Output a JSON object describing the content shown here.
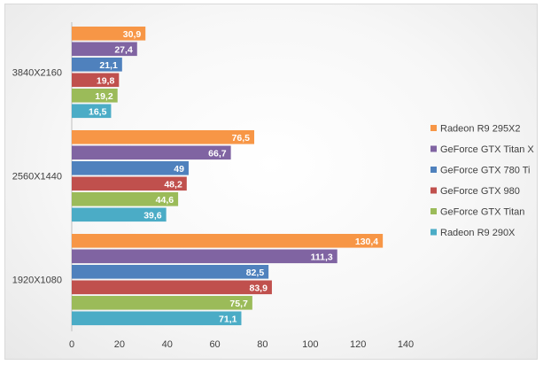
{
  "chart_data": {
    "type": "bar",
    "orientation": "horizontal",
    "categories": [
      "3840X2160",
      "2560X1440",
      "1920X1080"
    ],
    "series": [
      {
        "name": "Radeon R9 295X2",
        "color": "#F79646",
        "values": [
          30.9,
          76.5,
          130.4
        ],
        "labels": [
          "30,9",
          "76,5",
          "130,4"
        ]
      },
      {
        "name": "GeForce GTX Titan X",
        "color": "#8064A2",
        "values": [
          27.4,
          66.7,
          111.3
        ],
        "labels": [
          "27,4",
          "66,7",
          "111,3"
        ]
      },
      {
        "name": "GeForce GTX 780 Ti",
        "color": "#4F81BD",
        "values": [
          21.1,
          49,
          82.5
        ],
        "labels": [
          "21,1",
          "49",
          "82,5"
        ]
      },
      {
        "name": "GeForce GTX 980",
        "color": "#C0504D",
        "values": [
          19.8,
          48.2,
          83.9
        ],
        "labels": [
          "19,8",
          "48,2",
          "83,9"
        ]
      },
      {
        "name": "GeForce GTX Titan",
        "color": "#9BBB59",
        "values": [
          19.2,
          44.6,
          75.7
        ],
        "labels": [
          "19,2",
          "44,6",
          "75,7"
        ]
      },
      {
        "name": "Radeon R9 290X",
        "color": "#4BACC6",
        "values": [
          16.5,
          39.6,
          71.1
        ],
        "labels": [
          "16,5",
          "39,6",
          "71,1"
        ]
      }
    ],
    "xlim": [
      0,
      140
    ],
    "xticks": [
      "0",
      "20",
      "40",
      "60",
      "80",
      "100",
      "120",
      "140"
    ],
    "title": "",
    "xlabel": "",
    "ylabel": "",
    "grid": false,
    "legend_position": "right"
  }
}
